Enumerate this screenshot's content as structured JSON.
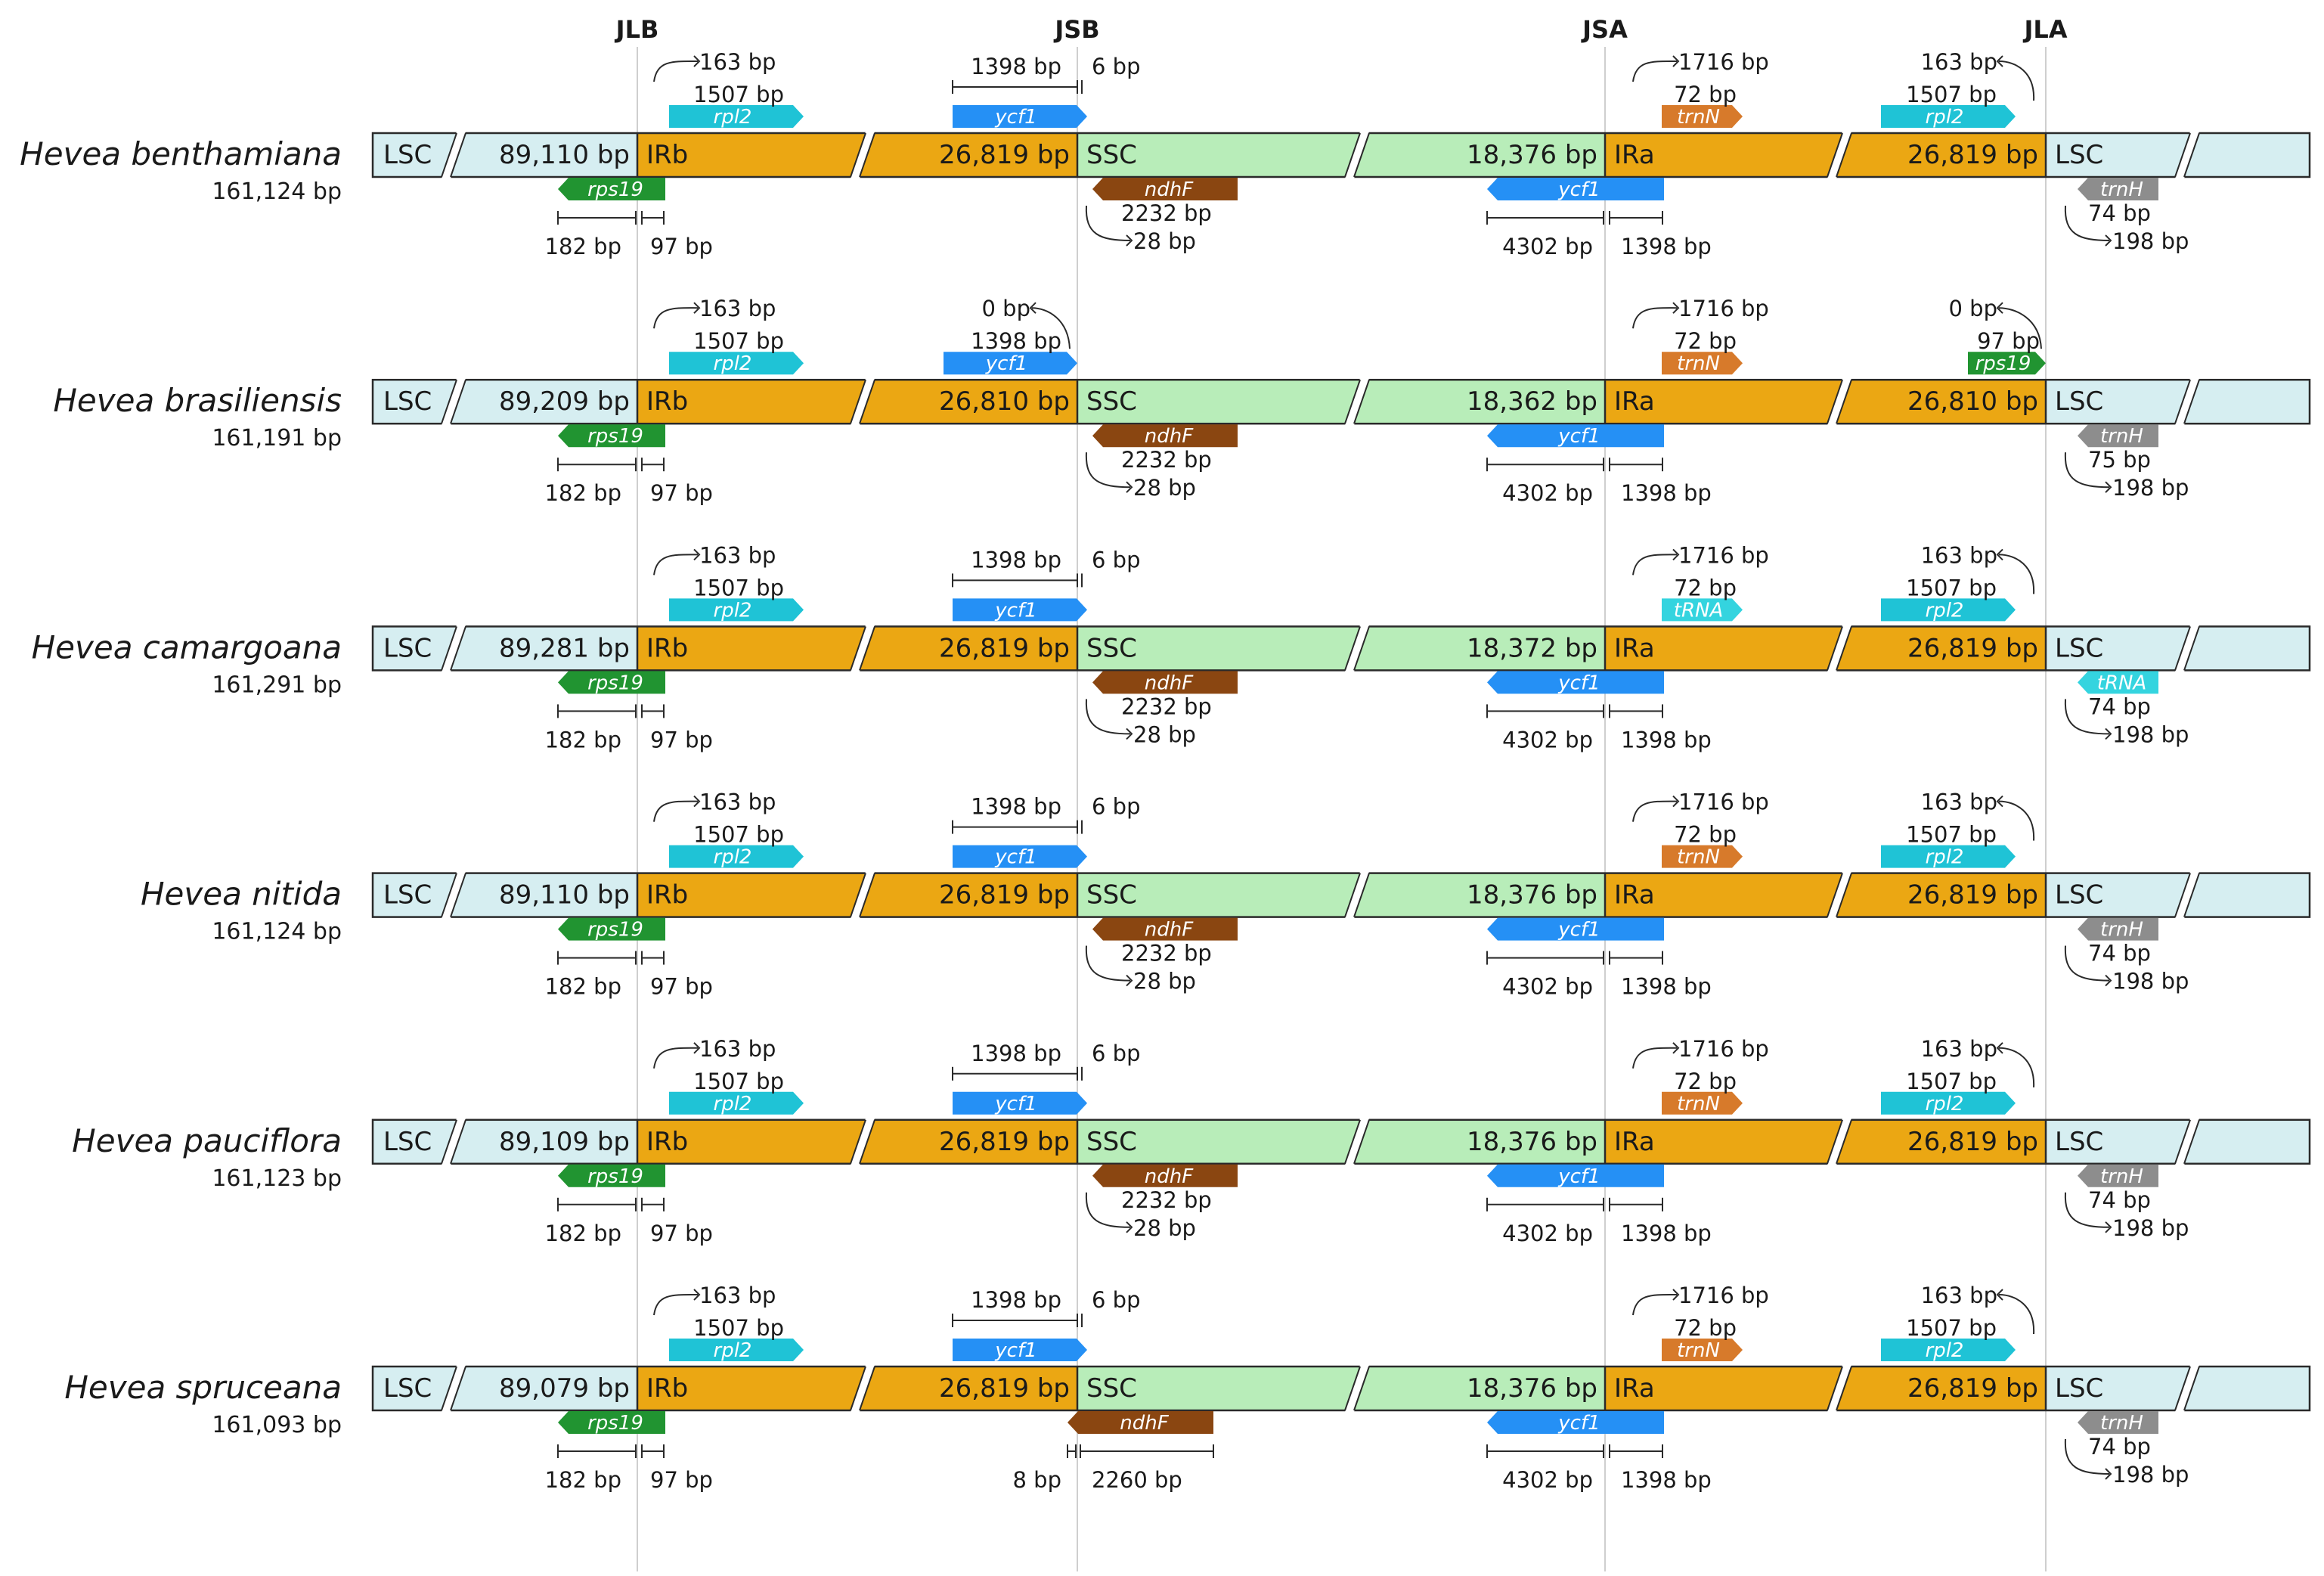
{
  "junction_labels": {
    "jlb": "JLB",
    "jsb": "JSB",
    "jsa": "JSA",
    "jla": "JLA"
  },
  "colors": {
    "lsc": "#d6eef1",
    "ir": "#eba713",
    "ssc": "#b8edb9",
    "rpl2": "#1fc3d6",
    "ycf1": "#2590f5",
    "trnN": "#d77a2b",
    "tRNA": "#34d4df",
    "rps19": "#219431",
    "ndhF": "#8a4611",
    "trnH": "#8d8d8d",
    "line": "#2a2a2a",
    "junction": "#cfcfcf"
  },
  "species": [
    {
      "name": "Hevea benthamiana",
      "length": "161,124 bp",
      "segments": {
        "lsc": "LSC",
        "lsc_len": "89,110 bp",
        "irb": "IRb",
        "irb_len": "26,819 bp",
        "ssc": "SSC",
        "ssc_len": "18,376 bp",
        "ira": "IRa",
        "ira_len": "26,819 bp",
        "lsc2": "LSC"
      },
      "top": {
        "jlb_label": "rpl2",
        "jlb_color": "rpl2",
        "jlb_a": "163 bp",
        "jlb_b": "1507 bp",
        "jsb_style": "over",
        "jsb_label": "ycf1",
        "jsb_a": "1398 bp",
        "jsb_b": "6 bp",
        "jsa_label": "trnN",
        "jsa_color": "trnN",
        "jsa_a": "1716 bp",
        "jsa_b": "72 bp",
        "jla_style": "ir",
        "jla_label": "rpl2",
        "jla_color": "rpl2",
        "jla_a": "163 bp",
        "jla_b": "1507 bp"
      },
      "bottom": {
        "jlb_label": "rps19",
        "jlb_a": "182 bp",
        "jlb_b": "97 bp",
        "jsb_style": "curve",
        "jsb_label": "ndhF",
        "jsb_a": "2232 bp",
        "jsb_b": "28 bp",
        "jsa_label": "ycf1",
        "jsa_a": "4302 bp",
        "jsa_b": "1398 bp",
        "jla_label": "trnH",
        "jla_color": "trnH",
        "jla_a": "74 bp",
        "jla_b": "198 bp"
      }
    },
    {
      "name": "Hevea brasiliensis",
      "length": "161,191 bp",
      "segments": {
        "lsc": "LSC",
        "lsc_len": "89,209 bp",
        "irb": "IRb",
        "irb_len": "26,810 bp",
        "ssc": "SSC",
        "ssc_len": "18,362 bp",
        "ira": "IRa",
        "ira_len": "26,810 bp",
        "lsc2": "LSC"
      },
      "top": {
        "jlb_label": "rpl2",
        "jlb_color": "rpl2",
        "jlb_a": "163 bp",
        "jlb_b": "1507 bp",
        "jsb_style": "end",
        "jsb_label": "ycf1",
        "jsb_a": "0 bp",
        "jsb_b": "1398 bp",
        "jsa_label": "trnN",
        "jsa_color": "trnN",
        "jsa_a": "1716 bp",
        "jsa_b": "72 bp",
        "jla_style": "end",
        "jla_label": "rps19",
        "jla_color": "rps19",
        "jla_a": "0 bp",
        "jla_b": "97 bp"
      },
      "bottom": {
        "jlb_label": "rps19",
        "jlb_a": "182 bp",
        "jlb_b": "97 bp",
        "jsb_style": "curve",
        "jsb_label": "ndhF",
        "jsb_a": "2232 bp",
        "jsb_b": "28 bp",
        "jsa_label": "ycf1",
        "jsa_a": "4302 bp",
        "jsa_b": "1398 bp",
        "jla_label": "trnH",
        "jla_color": "trnH",
        "jla_a": "75 bp",
        "jla_b": "198 bp"
      }
    },
    {
      "name": "Hevea camargoana",
      "length": "161,291 bp",
      "segments": {
        "lsc": "LSC",
        "lsc_len": "89,281 bp",
        "irb": "IRb",
        "irb_len": "26,819 bp",
        "ssc": "SSC",
        "ssc_len": "18,372 bp",
        "ira": "IRa",
        "ira_len": "26,819 bp",
        "lsc2": "LSC"
      },
      "top": {
        "jlb_label": "rpl2",
        "jlb_color": "rpl2",
        "jlb_a": "163 bp",
        "jlb_b": "1507 bp",
        "jsb_style": "over",
        "jsb_label": "ycf1",
        "jsb_a": "1398 bp",
        "jsb_b": "6 bp",
        "jsa_label": "tRNA",
        "jsa_color": "tRNA",
        "jsa_a": "1716 bp",
        "jsa_b": "72 bp",
        "jla_style": "ir",
        "jla_label": "rpl2",
        "jla_color": "rpl2",
        "jla_a": "163 bp",
        "jla_b": "1507 bp"
      },
      "bottom": {
        "jlb_label": "rps19",
        "jlb_a": "182 bp",
        "jlb_b": "97 bp",
        "jsb_style": "curve",
        "jsb_label": "ndhF",
        "jsb_a": "2232 bp",
        "jsb_b": "28 bp",
        "jsa_label": "ycf1",
        "jsa_a": "4302 bp",
        "jsa_b": "1398 bp",
        "jla_label": "tRNA",
        "jla_color": "tRNA",
        "jla_a": "74 bp",
        "jla_b": "198 bp"
      }
    },
    {
      "name": "Hevea nitida",
      "length": "161,124 bp",
      "segments": {
        "lsc": "LSC",
        "lsc_len": "89,110 bp",
        "irb": "IRb",
        "irb_len": "26,819 bp",
        "ssc": "SSC",
        "ssc_len": "18,376 bp",
        "ira": "IRa",
        "ira_len": "26,819 bp",
        "lsc2": "LSC"
      },
      "top": {
        "jlb_label": "rpl2",
        "jlb_color": "rpl2",
        "jlb_a": "163 bp",
        "jlb_b": "1507 bp",
        "jsb_style": "over",
        "jsb_label": "ycf1",
        "jsb_a": "1398 bp",
        "jsb_b": "6 bp",
        "jsa_label": "trnN",
        "jsa_color": "trnN",
        "jsa_a": "1716 bp",
        "jsa_b": "72 bp",
        "jla_style": "ir",
        "jla_label": "rpl2",
        "jla_color": "rpl2",
        "jla_a": "163 bp",
        "jla_b": "1507 bp"
      },
      "bottom": {
        "jlb_label": "rps19",
        "jlb_a": "182 bp",
        "jlb_b": "97 bp",
        "jsb_style": "curve",
        "jsb_label": "ndhF",
        "jsb_a": "2232 bp",
        "jsb_b": "28 bp",
        "jsa_label": "ycf1",
        "jsa_a": "4302 bp",
        "jsa_b": "1398 bp",
        "jla_label": "trnH",
        "jla_color": "trnH",
        "jla_a": "74 bp",
        "jla_b": "198 bp"
      }
    },
    {
      "name": "Hevea pauciflora",
      "length": "161,123 bp",
      "segments": {
        "lsc": "LSC",
        "lsc_len": "89,109 bp",
        "irb": "IRb",
        "irb_len": "26,819 bp",
        "ssc": "SSC",
        "ssc_len": "18,376 bp",
        "ira": "IRa",
        "ira_len": "26,819 bp",
        "lsc2": "LSC"
      },
      "top": {
        "jlb_label": "rpl2",
        "jlb_color": "rpl2",
        "jlb_a": "163 bp",
        "jlb_b": "1507 bp",
        "jsb_style": "over",
        "jsb_label": "ycf1",
        "jsb_a": "1398 bp",
        "jsb_b": "6 bp",
        "jsa_label": "trnN",
        "jsa_color": "trnN",
        "jsa_a": "1716 bp",
        "jsa_b": "72 bp",
        "jla_style": "ir",
        "jla_label": "rpl2",
        "jla_color": "rpl2",
        "jla_a": "163 bp",
        "jla_b": "1507 bp"
      },
      "bottom": {
        "jlb_label": "rps19",
        "jlb_a": "182 bp",
        "jlb_b": "97 bp",
        "jsb_style": "curve",
        "jsb_label": "ndhF",
        "jsb_a": "2232 bp",
        "jsb_b": "28 bp",
        "jsa_label": "ycf1",
        "jsa_a": "4302 bp",
        "jsa_b": "1398 bp",
        "jla_label": "trnH",
        "jla_color": "trnH",
        "jla_a": "74 bp",
        "jla_b": "198 bp"
      }
    },
    {
      "name": "Hevea spruceana",
      "length": "161,093 bp",
      "segments": {
        "lsc": "LSC",
        "lsc_len": "89,079 bp",
        "irb": "IRb",
        "irb_len": "26,819 bp",
        "ssc": "SSC",
        "ssc_len": "18,376 bp",
        "ira": "IRa",
        "ira_len": "26,819 bp",
        "lsc2": "LSC"
      },
      "top": {
        "jlb_label": "rpl2",
        "jlb_color": "rpl2",
        "jlb_a": "163 bp",
        "jlb_b": "1507 bp",
        "jsb_style": "over",
        "jsb_label": "ycf1",
        "jsb_a": "1398 bp",
        "jsb_b": "6 bp",
        "jsa_label": "trnN",
        "jsa_color": "trnN",
        "jsa_a": "1716 bp",
        "jsa_b": "72 bp",
        "jla_style": "ir",
        "jla_label": "rpl2",
        "jla_color": "rpl2",
        "jla_a": "163 bp",
        "jla_b": "1507 bp"
      },
      "bottom": {
        "jlb_label": "rps19",
        "jlb_a": "182 bp",
        "jlb_b": "97 bp",
        "jsb_style": "span",
        "jsb_label": "ndhF",
        "jsb_a": "8 bp",
        "jsb_b": "2260 bp",
        "jsa_label": "ycf1",
        "jsa_a": "4302 bp",
        "jsa_b": "1398 bp",
        "jla_label": "trnH",
        "jla_color": "trnH",
        "jla_a": "74 bp",
        "jla_b": "198 bp"
      }
    }
  ]
}
